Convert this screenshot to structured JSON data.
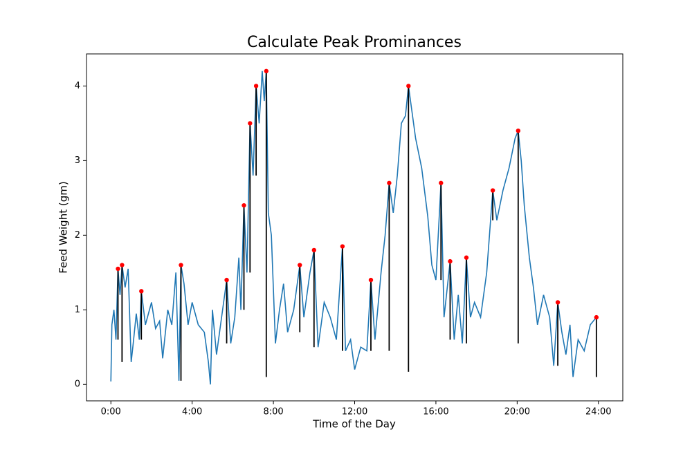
{
  "chart_data": {
    "type": "line",
    "title": "Calculate Peak Prominances",
    "x_label": "Time of the Day",
    "y_label": "Feed Weight (gm)",
    "x": [
      0.0,
      0.05,
      0.15,
      0.25,
      0.35,
      0.45,
      0.55,
      0.7,
      0.85,
      1.0,
      1.1,
      1.25,
      1.4,
      1.5,
      1.7,
      2.0,
      2.2,
      2.4,
      2.55,
      2.8,
      3.0,
      3.2,
      3.35,
      3.45,
      3.6,
      3.8,
      4.0,
      4.3,
      4.6,
      4.8,
      4.9,
      5.0,
      5.2,
      5.4,
      5.7,
      5.9,
      6.1,
      6.3,
      6.4,
      6.55,
      6.7,
      6.85,
      7.0,
      7.15,
      7.3,
      7.45,
      7.55,
      7.65,
      7.75,
      7.9,
      8.1,
      8.3,
      8.5,
      8.7,
      9.0,
      9.3,
      9.5,
      9.8,
      10.0,
      10.2,
      10.5,
      10.8,
      11.1,
      11.4,
      11.55,
      11.8,
      12.0,
      12.3,
      12.6,
      12.8,
      13.0,
      13.3,
      13.5,
      13.7,
      13.9,
      14.1,
      14.3,
      14.5,
      14.65,
      14.8,
      15.0,
      15.3,
      15.6,
      15.8,
      16.0,
      16.25,
      16.4,
      16.7,
      16.9,
      17.1,
      17.3,
      17.5,
      17.7,
      17.9,
      18.2,
      18.5,
      18.8,
      19.0,
      19.3,
      19.6,
      19.9,
      20.05,
      20.2,
      20.35,
      20.6,
      20.8,
      21.0,
      21.3,
      21.6,
      21.8,
      22.0,
      22.2,
      22.4,
      22.6,
      22.75,
      23.0,
      23.3,
      23.6,
      23.9
    ],
    "values": [
      0.04,
      0.8,
      1.0,
      0.6,
      1.55,
      1.2,
      1.6,
      1.3,
      1.55,
      0.3,
      0.55,
      0.95,
      0.6,
      1.25,
      0.8,
      1.1,
      0.75,
      0.85,
      0.35,
      1.0,
      0.8,
      1.5,
      0.05,
      1.6,
      1.35,
      0.8,
      1.1,
      0.8,
      0.7,
      0.3,
      0.0,
      1.0,
      0.4,
      0.8,
      1.4,
      0.55,
      0.9,
      1.7,
      1.0,
      2.4,
      1.5,
      3.5,
      2.8,
      4.0,
      3.5,
      4.2,
      3.8,
      4.2,
      2.3,
      2.0,
      0.55,
      1.0,
      1.35,
      0.7,
      1.0,
      1.6,
      0.9,
      1.5,
      1.8,
      0.5,
      1.1,
      0.9,
      0.6,
      1.85,
      0.45,
      0.6,
      0.2,
      0.5,
      0.45,
      1.4,
      0.6,
      1.5,
      2.0,
      2.7,
      2.3,
      2.8,
      3.5,
      3.6,
      4.0,
      3.7,
      3.3,
      2.9,
      2.25,
      1.6,
      1.4,
      2.7,
      0.9,
      1.65,
      0.6,
      1.2,
      0.55,
      1.7,
      0.9,
      1.1,
      0.9,
      1.5,
      2.6,
      2.2,
      2.6,
      2.9,
      3.3,
      3.4,
      3.0,
      2.4,
      1.7,
      1.3,
      0.8,
      1.2,
      0.9,
      0.25,
      1.1,
      0.7,
      0.4,
      0.8,
      0.1,
      0.6,
      0.45,
      0.8,
      0.9
    ],
    "color": "#1f77b4",
    "peaks": {
      "x": [
        0.35,
        0.55,
        1.5,
        3.45,
        5.7,
        6.55,
        6.85,
        7.15,
        7.65,
        9.3,
        10.0,
        11.4,
        12.8,
        13.7,
        14.65,
        16.25,
        16.7,
        17.5,
        18.8,
        20.05,
        22.0,
        23.9
      ],
      "values": [
        1.55,
        1.6,
        1.25,
        1.6,
        1.4,
        2.4,
        3.5,
        4.0,
        4.2,
        1.6,
        1.8,
        1.85,
        1.4,
        2.7,
        4.0,
        2.7,
        1.65,
        1.7,
        2.6,
        3.4,
        1.1,
        0.9
      ],
      "bases": [
        0.6,
        0.3,
        0.6,
        0.05,
        0.55,
        1.0,
        1.5,
        2.8,
        0.1,
        0.7,
        0.5,
        0.45,
        0.45,
        0.45,
        0.17,
        1.4,
        0.6,
        0.55,
        2.2,
        0.55,
        0.25,
        0.1
      ],
      "color": "red",
      "prominence_color": "black"
    },
    "xlim": [
      -1.2,
      25.2
    ],
    "ylim": [
      -0.22,
      4.43
    ],
    "xticks": [
      {
        "value": 0,
        "label": "0:00"
      },
      {
        "value": 4,
        "label": "4:00"
      },
      {
        "value": 8,
        "label": "8:00"
      },
      {
        "value": 12,
        "label": "12:00"
      },
      {
        "value": 16,
        "label": "16:00"
      },
      {
        "value": 20,
        "label": "20:00"
      },
      {
        "value": 24,
        "label": "24:00"
      }
    ],
    "yticks": [
      0,
      1,
      2,
      3,
      4
    ]
  }
}
